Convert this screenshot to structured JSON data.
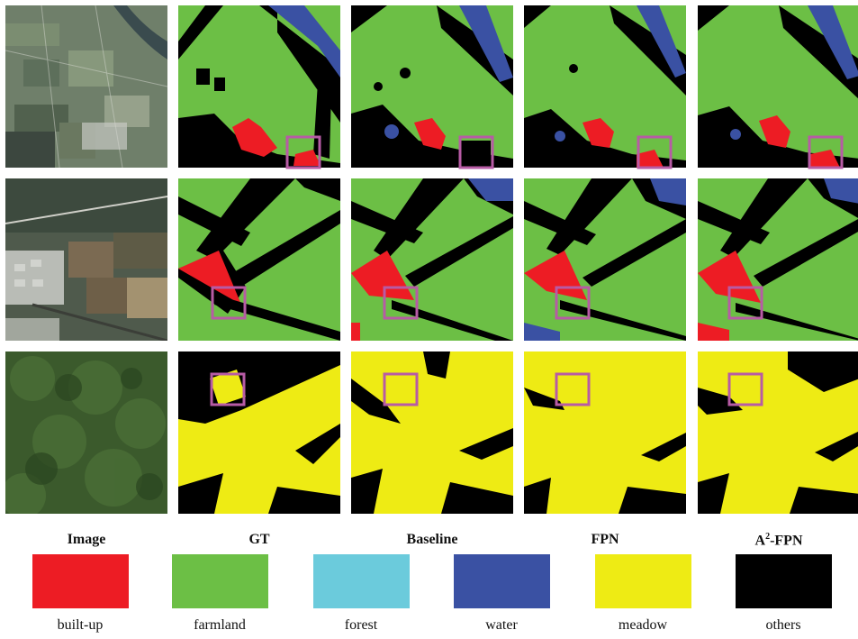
{
  "columns": [
    {
      "label": "Image"
    },
    {
      "label": "GT"
    },
    {
      "label": "Baseline"
    },
    {
      "label": "FPN"
    },
    {
      "label": "A",
      "sup": "2",
      "suffix": "-FPN"
    }
  ],
  "legend": [
    {
      "label": "built-up",
      "color": "#ed1c24"
    },
    {
      "label": "farmland",
      "color": "#6cbf45"
    },
    {
      "label": "forest",
      "color": "#6bcbdc"
    },
    {
      "label": "water",
      "color": "#3a51a3"
    },
    {
      "label": "meadow",
      "color": "#eeeb14"
    },
    {
      "label": "others",
      "color": "#000000"
    }
  ],
  "highlight_color": "#b75ba5"
}
